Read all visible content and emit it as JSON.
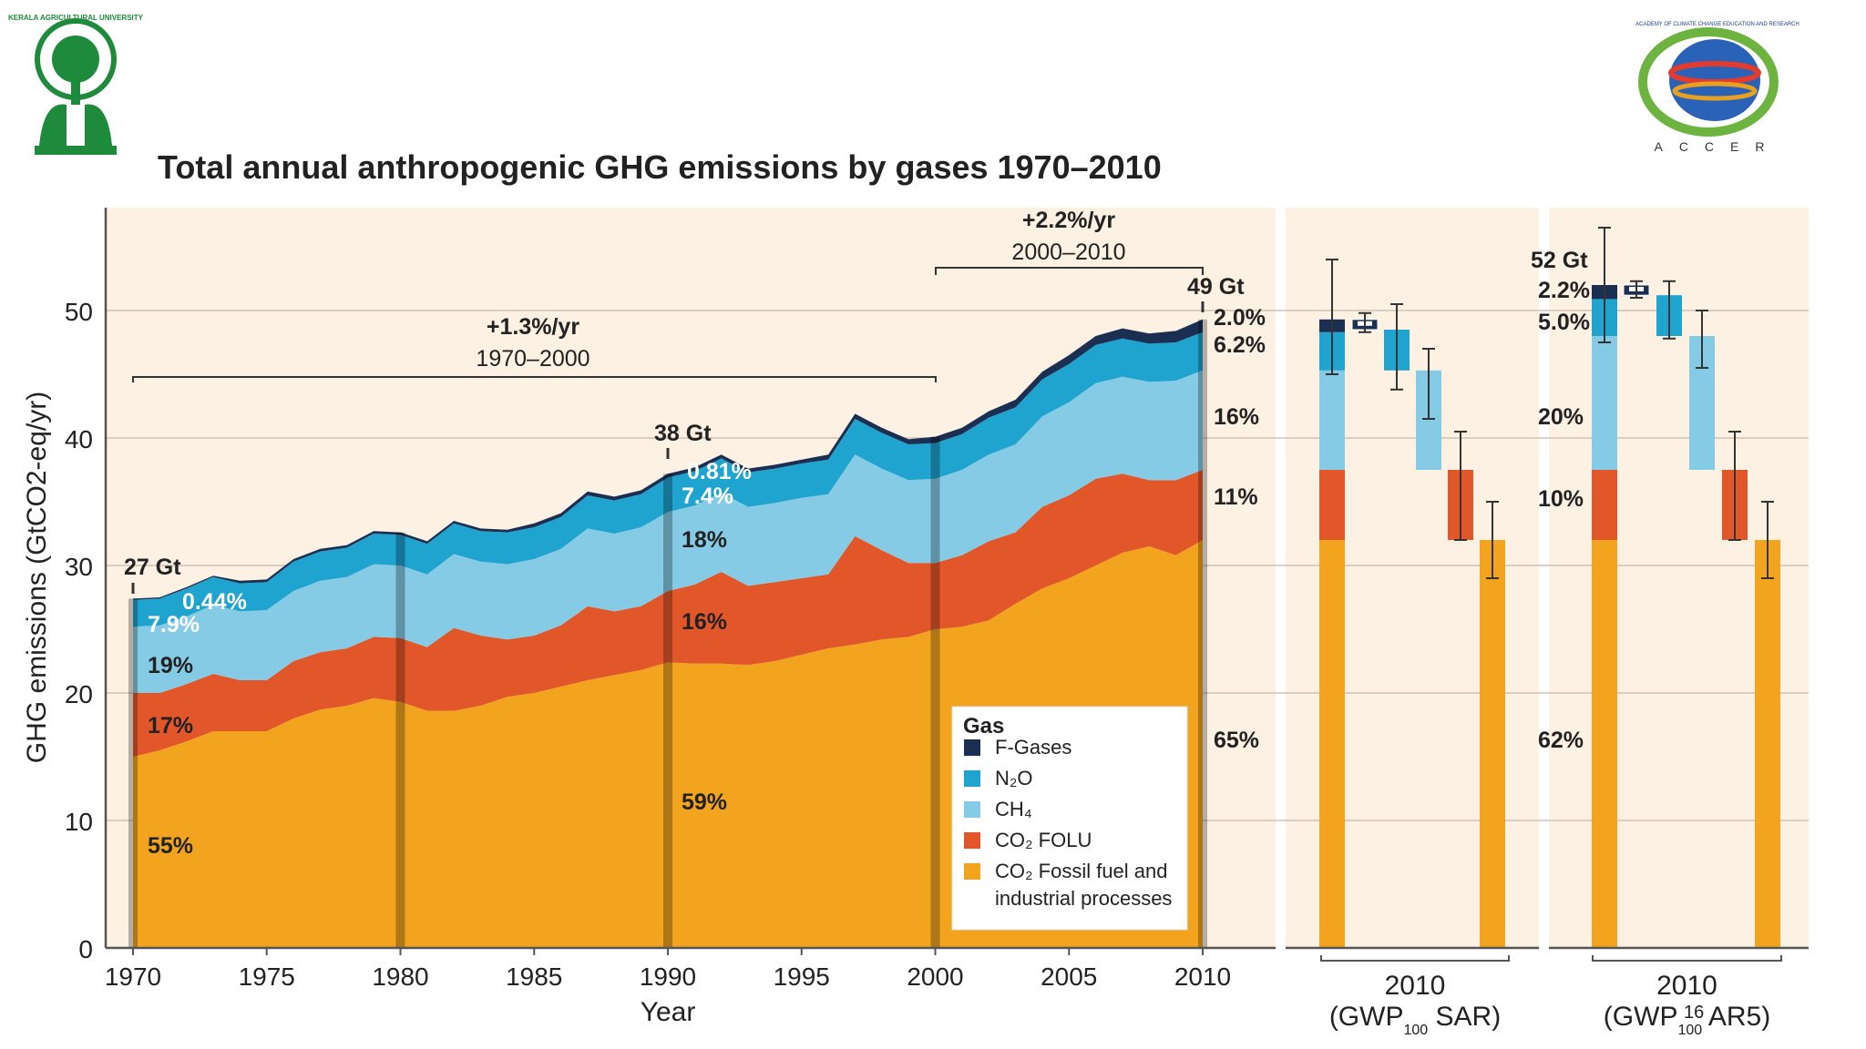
{
  "slide": {
    "title": "Total annual anthropogenic GHG emissions by gases 1970–2010",
    "page_number": "16",
    "logo_left_name": "KERALA AGRICULTURAL UNIVERSITY",
    "logo_right_name": "ACCER",
    "logo_right_arc_text": "ACADEMY OF CLIMATE CHANGE EDUCATION AND RESEARCH"
  },
  "colors": {
    "fgases": "#1a2f52",
    "n2o": "#1fa3cf",
    "ch4": "#86cbe6",
    "co2folu": "#e2572a",
    "co2ff": "#f2a41f",
    "plot_bg": "#fdf1e3",
    "vline": "#8a6a4a"
  },
  "chart_data": {
    "type": "area",
    "title": "Total annual anthropogenic GHG emissions by gases 1970–2010",
    "xlabel": "Year",
    "ylabel": "GHG emissions (GtCO2-eq/yr)",
    "ylim": [
      0,
      58
    ],
    "yticks": [
      0,
      10,
      20,
      30,
      40,
      50
    ],
    "xticks": [
      1970,
      1975,
      1980,
      1985,
      1990,
      1995,
      2000,
      2005,
      2010
    ],
    "grid": true,
    "legend_title": "Gas",
    "legend_position": "bottom-right",
    "x": [
      1970,
      1971,
      1972,
      1973,
      1974,
      1975,
      1976,
      1977,
      1978,
      1979,
      1980,
      1981,
      1982,
      1983,
      1984,
      1985,
      1986,
      1987,
      1988,
      1989,
      1990,
      1991,
      1992,
      1993,
      1994,
      1995,
      1996,
      1997,
      1998,
      1999,
      2000,
      2001,
      2002,
      2003,
      2004,
      2005,
      2006,
      2007,
      2008,
      2009,
      2010
    ],
    "series": [
      {
        "name": "CO2 Fossil fuel and industrial processes",
        "color_key": "co2ff",
        "values": [
          15.0,
          15.5,
          16.2,
          17.0,
          17.0,
          17.0,
          18.0,
          18.7,
          19.0,
          19.6,
          19.3,
          18.6,
          18.6,
          19.0,
          19.7,
          20.0,
          20.5,
          21.0,
          21.4,
          21.8,
          22.4,
          22.3,
          22.3,
          22.2,
          22.5,
          23.0,
          23.5,
          23.8,
          24.2,
          24.4,
          25.0,
          25.2,
          25.7,
          27.0,
          28.2,
          29.0,
          30.0,
          31.0,
          31.5,
          30.8,
          32.0
        ]
      },
      {
        "name": "CO2 FOLU",
        "color_key": "co2folu",
        "values": [
          5.0,
          4.5,
          4.5,
          4.5,
          4.0,
          4.0,
          4.5,
          4.5,
          4.5,
          4.8,
          5.0,
          5.0,
          6.5,
          5.5,
          4.5,
          4.5,
          4.8,
          5.8,
          5.0,
          5.0,
          5.6,
          6.2,
          7.2,
          6.2,
          6.2,
          6.0,
          5.8,
          8.5,
          7.0,
          5.8,
          5.2,
          5.6,
          6.2,
          5.6,
          6.4,
          6.5,
          6.8,
          6.2,
          5.2,
          5.9,
          5.5
        ]
      },
      {
        "name": "CH4",
        "color_key": "ch4",
        "values": [
          5.2,
          5.3,
          5.3,
          5.4,
          5.4,
          5.5,
          5.5,
          5.6,
          5.6,
          5.7,
          5.7,
          5.7,
          5.8,
          5.8,
          5.9,
          6.0,
          6.0,
          6.1,
          6.1,
          6.2,
          6.2,
          6.2,
          6.2,
          6.2,
          6.2,
          6.3,
          6.3,
          6.4,
          6.4,
          6.5,
          6.6,
          6.7,
          6.8,
          6.9,
          7.1,
          7.3,
          7.5,
          7.6,
          7.7,
          7.8,
          7.8
        ]
      },
      {
        "name": "N2O",
        "color_key": "n2o",
        "values": [
          2.1,
          2.1,
          2.2,
          2.2,
          2.2,
          2.2,
          2.3,
          2.3,
          2.3,
          2.4,
          2.4,
          2.4,
          2.4,
          2.4,
          2.5,
          2.5,
          2.5,
          2.6,
          2.6,
          2.6,
          2.7,
          2.7,
          2.7,
          2.7,
          2.7,
          2.7,
          2.7,
          2.8,
          2.8,
          2.8,
          2.8,
          2.8,
          2.9,
          2.9,
          2.9,
          3.0,
          3.0,
          3.0,
          3.0,
          3.0,
          3.0
        ]
      },
      {
        "name": "F-Gases",
        "color_key": "fgases",
        "values": [
          0.1,
          0.1,
          0.1,
          0.1,
          0.2,
          0.2,
          0.2,
          0.2,
          0.2,
          0.2,
          0.2,
          0.2,
          0.2,
          0.2,
          0.2,
          0.3,
          0.3,
          0.3,
          0.3,
          0.3,
          0.3,
          0.3,
          0.3,
          0.3,
          0.3,
          0.3,
          0.4,
          0.4,
          0.4,
          0.4,
          0.5,
          0.5,
          0.5,
          0.6,
          0.6,
          0.7,
          0.7,
          0.8,
          0.8,
          0.9,
          1.0
        ]
      }
    ],
    "legend_items": [
      {
        "label": "F-Gases",
        "color_key": "fgases"
      },
      {
        "label": "N₂O",
        "color_key": "n2o"
      },
      {
        "label": "CH₄",
        "color_key": "ch4"
      },
      {
        "label": "CO₂ FOLU",
        "color_key": "co2folu"
      },
      {
        "label": "CO₂ Fossil fuel and",
        "label2": "industrial processes",
        "color_key": "co2ff"
      }
    ],
    "year_markers": [
      1970,
      1980,
      1990,
      2000,
      2010
    ],
    "annotations": {
      "total_1970": "27 Gt",
      "total_1990": "38 Gt",
      "total_2010": "49 Gt",
      "growth_1": {
        "rate": "+1.3%/yr",
        "period": "1970–2000"
      },
      "growth_2": {
        "rate": "+2.2%/yr",
        "period": "2000–2010"
      },
      "shares_1970": {
        "fgases": "0.44%",
        "n2o": "7.9%",
        "ch4": "19%",
        "co2folu": "17%",
        "co2ff": "55%"
      },
      "shares_1990": {
        "fgases": "0.81%",
        "n2o": "7.4%",
        "ch4": "18%",
        "co2folu": "16%",
        "co2ff": "59%"
      },
      "shares_2010": {
        "fgases": "2.0%",
        "n2o": "6.2%",
        "ch4": "16%",
        "co2folu": "11%",
        "co2ff": "65%"
      }
    },
    "side_panels": [
      {
        "name": "SAR",
        "label_line1": "2010",
        "label_line2_pre": "(GWP",
        "label_sub": "100",
        "label_line2_post": " SAR)",
        "total_label": "",
        "shares": {
          "fgases": "",
          "n2o": "",
          "ch4": "",
          "co2folu": "",
          "co2ff": ""
        },
        "stacked_bounds": [
          0,
          32.0,
          37.5,
          45.3,
          48.3,
          49.3
        ],
        "stack_error": [
          45.0,
          54.0
        ],
        "components": [
          {
            "key": "fgases",
            "bottom": 48.5,
            "top": 49.3,
            "err": [
              48.3,
              49.8
            ]
          },
          {
            "key": "n2o",
            "bottom": 45.3,
            "top": 48.5,
            "err": [
              43.8,
              50.5
            ]
          },
          {
            "key": "ch4",
            "bottom": 37.5,
            "top": 45.3,
            "err": [
              41.5,
              47.0
            ]
          },
          {
            "key": "co2folu",
            "bottom": 32.0,
            "top": 37.5,
            "err": [
              32.0,
              40.5
            ]
          },
          {
            "key": "co2ff",
            "bottom": 0,
            "top": 32.0,
            "err": [
              29.0,
              35.0
            ]
          }
        ]
      },
      {
        "name": "AR5",
        "label_line1": "2010",
        "label_line2_pre": "(GWP",
        "label_sub": "100",
        "label_line2_post": " AR5)",
        "total_label": "52 Gt",
        "shares": {
          "fgases": "2.2%",
          "n2o": "5.0%",
          "ch4": "20%",
          "co2folu": "10%",
          "co2ff": "62%"
        },
        "stacked_bounds": [
          0,
          32.0,
          37.5,
          48.0,
          50.9,
          52.0
        ],
        "stack_error": [
          47.5,
          56.5
        ],
        "components": [
          {
            "key": "fgases",
            "bottom": 51.2,
            "top": 52.0,
            "err": [
              51.0,
              52.3
            ]
          },
          {
            "key": "n2o",
            "bottom": 48.0,
            "top": 51.2,
            "err": [
              47.8,
              52.3
            ]
          },
          {
            "key": "ch4",
            "bottom": 37.5,
            "top": 48.0,
            "err": [
              45.5,
              50.0
            ]
          },
          {
            "key": "co2folu",
            "bottom": 32.0,
            "top": 37.5,
            "err": [
              32.0,
              40.5
            ]
          },
          {
            "key": "co2ff",
            "bottom": 0,
            "top": 32.0,
            "err": [
              29.0,
              35.0
            ]
          }
        ]
      }
    ]
  }
}
